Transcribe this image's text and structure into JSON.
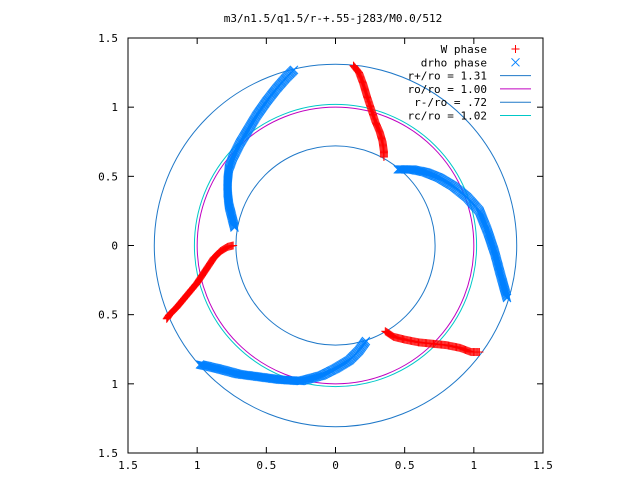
{
  "chart_data": {
    "type": "scatter",
    "title": "m3/n1.5/q1.5/r-+.55-j283/M0.0/512",
    "xlabel": "",
    "ylabel": "",
    "xlim": [
      -1.5,
      1.5
    ],
    "ylim": [
      -1.5,
      1.5
    ],
    "x_ticks": [
      -1.5,
      -1,
      -0.5,
      0,
      0.5,
      1,
      1.5
    ],
    "x_tick_labels": [
      "1.5",
      "1",
      "0.5",
      "0",
      "0.5",
      "1",
      "1.5"
    ],
    "y_ticks": [
      1.5,
      1,
      0.5,
      0,
      -0.5,
      -1,
      -1.5
    ],
    "y_tick_labels": [
      "1.5",
      "1",
      "0.5",
      "0",
      "0.5",
      "1",
      "1.5"
    ],
    "grid": false,
    "legend_position": "top-right",
    "series": [
      {
        "name": "W phase",
        "kind": "points",
        "marker": "plus",
        "color": "#ff0000",
        "segments": [
          [
            [
              0.13,
              1.3
            ],
            [
              0.17,
              1.25
            ],
            [
              0.2,
              1.17
            ],
            [
              0.23,
              1.07
            ],
            [
              0.26,
              0.98
            ],
            [
              0.29,
              0.89
            ],
            [
              0.32,
              0.82
            ],
            [
              0.34,
              0.75
            ],
            [
              0.35,
              0.68
            ],
            [
              0.35,
              0.64
            ]
          ],
          [
            [
              -0.74,
              0.0
            ],
            [
              -0.78,
              -0.01
            ],
            [
              -0.83,
              -0.04
            ],
            [
              -0.88,
              -0.09
            ],
            [
              -0.92,
              -0.15
            ],
            [
              -0.96,
              -0.21
            ],
            [
              -1.0,
              -0.27
            ],
            [
              -1.05,
              -0.33
            ],
            [
              -1.1,
              -0.39
            ],
            [
              -1.15,
              -0.45
            ],
            [
              -1.2,
              -0.5
            ],
            [
              -1.22,
              -0.53
            ]
          ],
          [
            [
              0.36,
              -0.62
            ],
            [
              0.42,
              -0.66
            ],
            [
              0.5,
              -0.68
            ],
            [
              0.6,
              -0.7
            ],
            [
              0.7,
              -0.71
            ],
            [
              0.8,
              -0.72
            ],
            [
              0.9,
              -0.74
            ],
            [
              0.98,
              -0.77
            ],
            [
              1.04,
              -0.77
            ]
          ]
        ]
      },
      {
        "name": "drho phase",
        "kind": "points",
        "marker": "cross",
        "color": "#0080ff",
        "segments": [
          [
            [
              -0.3,
              1.27
            ],
            [
              -0.36,
              1.21
            ],
            [
              -0.43,
              1.13
            ],
            [
              -0.5,
              1.04
            ],
            [
              -0.57,
              0.94
            ],
            [
              -0.63,
              0.84
            ],
            [
              -0.69,
              0.74
            ],
            [
              -0.74,
              0.64
            ],
            [
              -0.77,
              0.56
            ],
            [
              -0.78,
              0.47
            ],
            [
              -0.78,
              0.38
            ],
            [
              -0.77,
              0.29
            ],
            [
              -0.75,
              0.21
            ],
            [
              -0.73,
              0.13
            ]
          ],
          [
            [
              0.45,
              0.55
            ],
            [
              0.55,
              0.55
            ],
            [
              0.65,
              0.53
            ],
            [
              0.75,
              0.49
            ],
            [
              0.85,
              0.43
            ],
            [
              0.95,
              0.35
            ],
            [
              1.04,
              0.25
            ],
            [
              1.1,
              0.1
            ],
            [
              1.15,
              -0.05
            ],
            [
              1.19,
              -0.2
            ],
            [
              1.24,
              -0.38
            ]
          ],
          [
            [
              0.22,
              -0.69
            ],
            [
              0.17,
              -0.76
            ],
            [
              0.1,
              -0.83
            ],
            [
              0.0,
              -0.89
            ],
            [
              -0.1,
              -0.94
            ],
            [
              -0.25,
              -0.98
            ],
            [
              -0.4,
              -0.97
            ],
            [
              -0.55,
              -0.95
            ],
            [
              -0.7,
              -0.93
            ],
            [
              -0.85,
              -0.89
            ],
            [
              -0.98,
              -0.86
            ]
          ]
        ]
      },
      {
        "name": "r+/ro = 1.31",
        "kind": "circle",
        "radius": 1.31,
        "color": "#1f78c8"
      },
      {
        "name": "ro/ro = 1.00",
        "kind": "circle",
        "radius": 1.0,
        "color": "#c000c0"
      },
      {
        "name": "r-/ro = .72",
        "kind": "circle",
        "radius": 0.72,
        "color": "#1f78c8"
      },
      {
        "name": "rc/ro = 1.02",
        "kind": "circle",
        "radius": 1.02,
        "color": "#00c8c8"
      }
    ]
  }
}
